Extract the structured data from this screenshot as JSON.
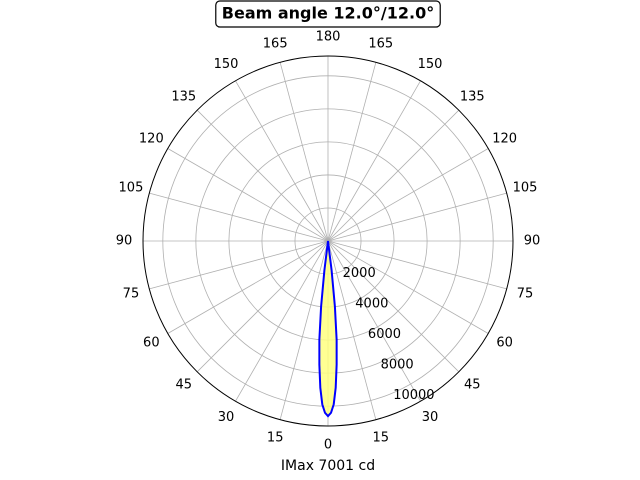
{
  "chart_data": {
    "type": "polar",
    "title": "Beam angle 12.0°/12.0°",
    "xlabel": "IMax 7001 cd",
    "x": [
      -8,
      -7,
      -6,
      -5,
      -4,
      -3,
      -2,
      -1,
      0,
      1,
      2,
      3,
      4,
      5,
      6,
      7,
      8
    ],
    "values": [
      0,
      1800,
      4000,
      6000,
      7500,
      8900,
      9900,
      10400,
      10600,
      10400,
      9900,
      8900,
      7500,
      6000,
      4000,
      1800,
      0
    ],
    "color": "#0000ff",
    "fill_color": "#ffff80",
    "ylim": [
      0,
      11200
    ],
    "yticks": [
      2000,
      4000,
      6000,
      8000,
      10000
    ],
    "xticks": [
      0,
      15,
      30,
      45,
      60,
      75,
      90,
      105,
      120,
      135,
      150,
      165,
      180,
      {
        "value": -15,
        "label": "15"
      },
      {
        "value": -30,
        "label": "30"
      },
      {
        "value": -45,
        "label": "45"
      },
      {
        "value": -60,
        "label": "60"
      },
      {
        "value": -75,
        "label": "75"
      },
      {
        "value": -90,
        "label": "90"
      },
      {
        "value": -105,
        "label": "105"
      },
      {
        "value": -120,
        "label": "120"
      },
      {
        "value": -135,
        "label": "135"
      },
      {
        "value": -150,
        "label": "150"
      },
      {
        "value": -165,
        "label": "165"
      }
    ],
    "grid": true
  }
}
